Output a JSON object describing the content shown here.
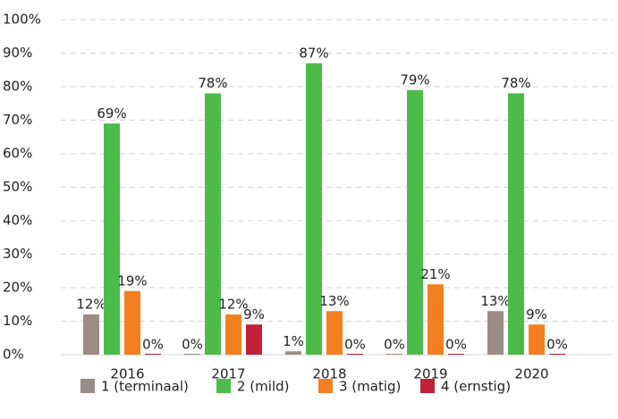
{
  "chart_data": {
    "type": "bar",
    "categories": [
      "2016",
      "2017",
      "2018",
      "2019",
      "2020"
    ],
    "series": [
      {
        "name": "1 (terminaal)",
        "color": "#9c8c87",
        "values": [
          12,
          0,
          1,
          0,
          13
        ],
        "value_labels": [
          "12%",
          "0%",
          "1%",
          "0%",
          "13%"
        ]
      },
      {
        "name": "2 (mild)",
        "color": "#4dbb4a",
        "values": [
          69,
          78,
          87,
          79,
          78
        ],
        "value_labels": [
          "69%",
          "78%",
          "87%",
          "79%",
          "78%"
        ]
      },
      {
        "name": "3 (matig)",
        "color": "#f47f20",
        "values": [
          19,
          12,
          13,
          21,
          9
        ],
        "value_labels": [
          "19%",
          "12%",
          "13%",
          "21%",
          "9%"
        ]
      },
      {
        "name": "4 (ernstig)",
        "color": "#c0203a",
        "values": [
          0,
          9,
          0,
          0,
          0
        ],
        "value_labels": [
          "0%",
          "9%",
          "0%",
          "0%",
          "0%"
        ]
      }
    ],
    "ylim": [
      0,
      100
    ],
    "yticks": [
      {
        "value": 0,
        "label": "0%"
      },
      {
        "value": 10,
        "label": "10%"
      },
      {
        "value": 20,
        "label": "20%"
      },
      {
        "value": 30,
        "label": "30%"
      },
      {
        "value": 40,
        "label": "40%"
      },
      {
        "value": 50,
        "label": "50%"
      },
      {
        "value": 60,
        "label": "60%"
      },
      {
        "value": 70,
        "label": "70%"
      },
      {
        "value": 80,
        "label": "80%"
      },
      {
        "value": 90,
        "label": "90%"
      },
      {
        "value": 100,
        "label": "100%"
      }
    ],
    "grid": true,
    "legend": "bottom"
  }
}
